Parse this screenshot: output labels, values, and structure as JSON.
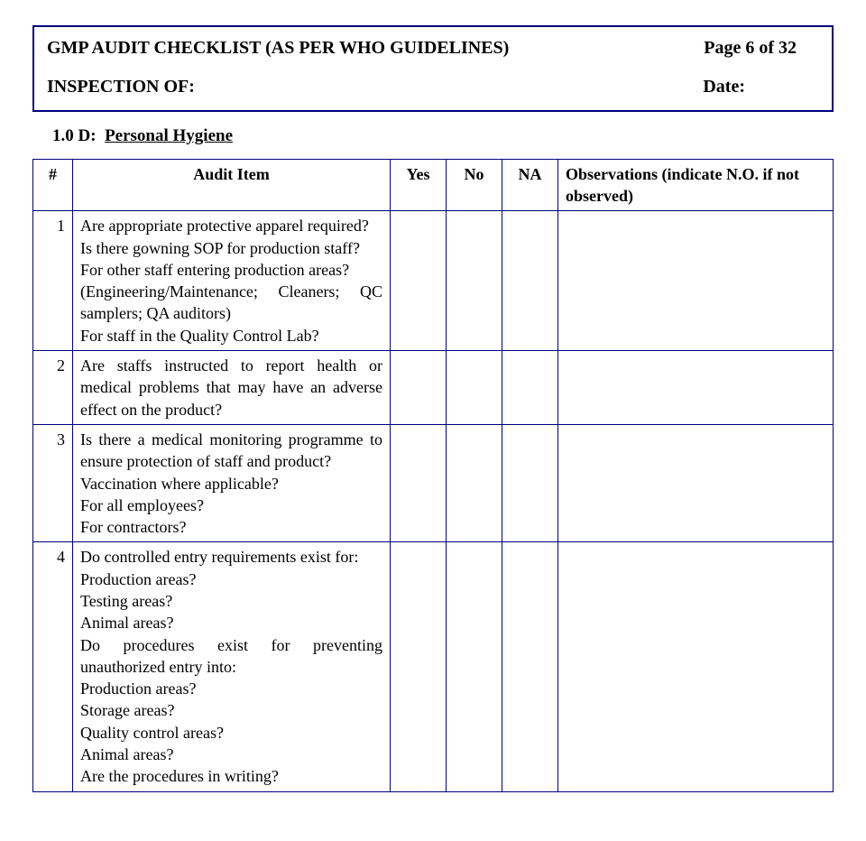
{
  "header": {
    "title": "GMP AUDIT CHECKLIST (AS PER WHO GUIDELINES)",
    "page": "Page 6 of 32",
    "inspection_label": "INSPECTION OF:",
    "date_label": "Date:"
  },
  "section": {
    "number": "1.0 D:",
    "label": "Personal Hygiene"
  },
  "columns": {
    "num": "#",
    "item": "Audit Item",
    "yes": "Yes",
    "no": "No",
    "na": "NA",
    "obs": "Observations (indicate N.O. if not observed)"
  },
  "rows": [
    {
      "num": "1",
      "item": "Are appropriate protective apparel required?\nIs there gowning SOP for production staff?\nFor other staff entering production areas?\n(Engineering/Maintenance; Cleaners; QC samplers; QA auditors)\nFor staff in the Quality Control Lab?"
    },
    {
      "num": "2",
      "item": "Are staffs instructed to report health or medical problems that may have an adverse effect on the product?"
    },
    {
      "num": "3",
      "item": "Is there a medical monitoring programme to ensure protection of staff and product?\nVaccination where applicable?\nFor all employees?\nFor contractors?"
    },
    {
      "num": "4",
      "item": "Do controlled entry requirements exist for:\nProduction areas?\nTesting areas?\nAnimal areas?\nDo procedures exist for preventing unauthorized entry into:\nProduction areas?\nStorage areas?\nQuality control areas?\nAnimal areas?\nAre the procedures in writing?"
    }
  ]
}
